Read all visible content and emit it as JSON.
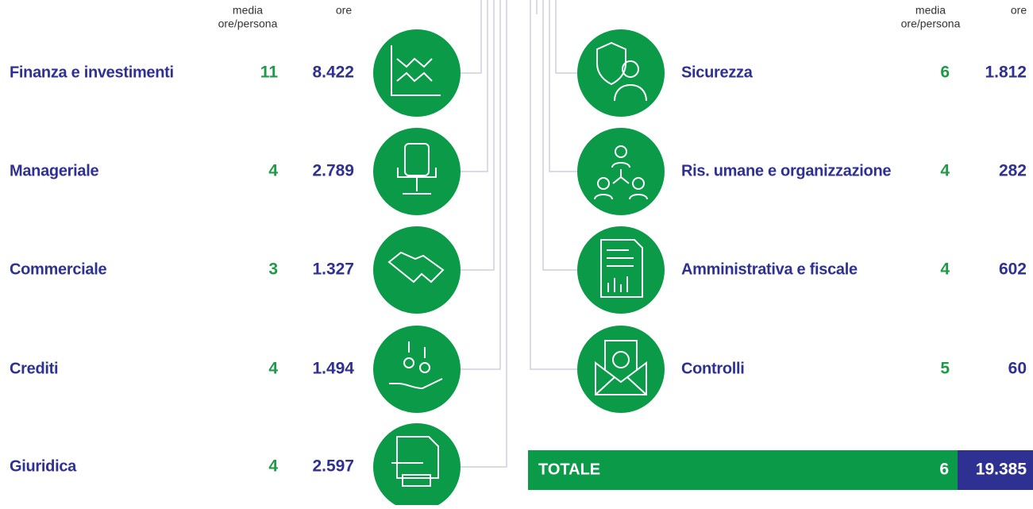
{
  "headers": {
    "media_line1": "media",
    "media_line2": "ore/persona",
    "ore": "ore"
  },
  "left": [
    {
      "name": "Finanza e investimenti",
      "media": "11",
      "ore": "8.422"
    },
    {
      "name": "Manageriale",
      "media": "4",
      "ore": "2.789"
    },
    {
      "name": "Commerciale",
      "media": "3",
      "ore": "1.327"
    },
    {
      "name": "Crediti",
      "media": "4",
      "ore": "1.494"
    },
    {
      "name": "Giuridica",
      "media": "4",
      "ore": "2.597"
    }
  ],
  "right": [
    {
      "name": "Sicurezza",
      "media": "6",
      "ore": "1.812"
    },
    {
      "name": "Ris. umane e organizzazione",
      "media": "4",
      "ore": "282"
    },
    {
      "name": "Amministrativa e fiscale",
      "media": "4",
      "ore": "602"
    },
    {
      "name": "Controlli",
      "media": "5",
      "ore": "60"
    }
  ],
  "total": {
    "label": "TOTALE",
    "media": "6",
    "ore": "19.385"
  }
}
